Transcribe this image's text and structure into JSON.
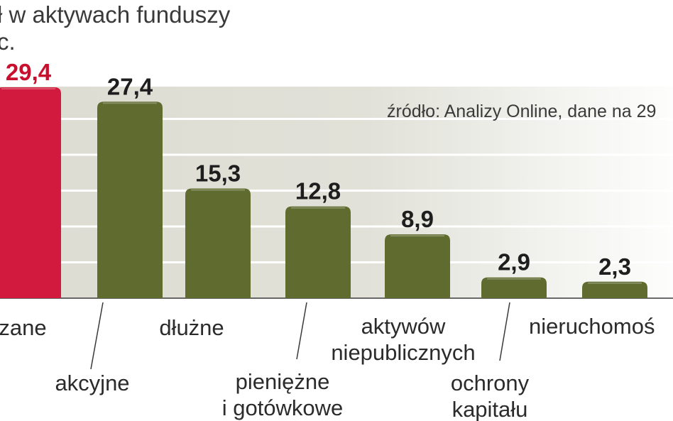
{
  "title_lines": [
    "ł w aktywach funduszy",
    "c."
  ],
  "source": "źródło: Analizy Online, dane na 29",
  "colors": {
    "highlight": "#d11a3e",
    "bar": "#5f6b2f",
    "band": "#dcdcd2",
    "grid": "#ffffff",
    "text": "#2b2b2b",
    "value_highlight": "#c8102e",
    "value": "#1e1e1e"
  },
  "chart_data": {
    "type": "bar",
    "title": "",
    "xlabel": "",
    "ylabel": "",
    "ylim": [
      0,
      30
    ],
    "grid": true,
    "categories": [
      [
        "zane"
      ],
      [
        "akcyjne"
      ],
      [
        "dłużne"
      ],
      [
        "pieniężne",
        "i gotówkowe"
      ],
      [
        "aktywów",
        "niepublicznych"
      ],
      [
        "ochrony",
        "kapitału"
      ],
      [
        "nieruchomoś"
      ]
    ],
    "values": [
      29.4,
      27.4,
      15.3,
      12.8,
      8.9,
      2.9,
      2.3
    ],
    "value_labels": [
      "29,4",
      "27,4",
      "15,3",
      "12,8",
      "8,9",
      "2,9",
      "2,3"
    ],
    "highlight_index": 0
  }
}
